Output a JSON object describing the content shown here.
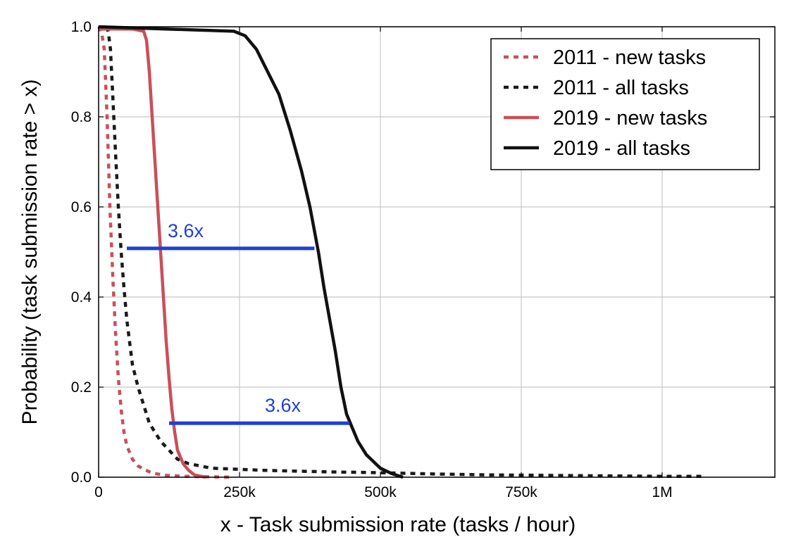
{
  "chart_data": {
    "type": "line",
    "title": "",
    "xlabel": "x - Task submission rate (tasks / hour)",
    "ylabel": "Probability (task submission rate > x)",
    "xlim": [
      0,
      1200000
    ],
    "ylim": [
      0,
      1.0
    ],
    "grid": true,
    "legend_position": "top-right",
    "x_ticks": [
      {
        "value": 0,
        "label": "0"
      },
      {
        "value": 250000,
        "label": "250k"
      },
      {
        "value": 500000,
        "label": "500k"
      },
      {
        "value": 750000,
        "label": "750k"
      },
      {
        "value": 1000000,
        "label": "1M"
      }
    ],
    "y_ticks": [
      {
        "value": 0.0,
        "label": "0.0"
      },
      {
        "value": 0.2,
        "label": "0.2"
      },
      {
        "value": 0.4,
        "label": "0.4"
      },
      {
        "value": 0.6,
        "label": "0.6"
      },
      {
        "value": 0.8,
        "label": "0.8"
      },
      {
        "value": 1.0,
        "label": "1.0"
      }
    ],
    "series": [
      {
        "name": "2011 - new tasks",
        "color": "#c8505a",
        "style": "dotted",
        "points": [
          [
            0,
            1.0
          ],
          [
            5000,
            0.99
          ],
          [
            10000,
            0.95
          ],
          [
            15000,
            0.8
          ],
          [
            20000,
            0.6
          ],
          [
            25000,
            0.45
          ],
          [
            30000,
            0.32
          ],
          [
            35000,
            0.22
          ],
          [
            40000,
            0.15
          ],
          [
            45000,
            0.1
          ],
          [
            50000,
            0.07
          ],
          [
            60000,
            0.04
          ],
          [
            70000,
            0.025
          ],
          [
            80000,
            0.018
          ],
          [
            90000,
            0.012
          ],
          [
            100000,
            0.008
          ],
          [
            120000,
            0.004
          ],
          [
            150000,
            0.002
          ],
          [
            200000,
            0.001
          ],
          [
            240000,
            0.0
          ]
        ]
      },
      {
        "name": "2011 - all tasks",
        "color": "#1a1a1a",
        "style": "dotted",
        "points": [
          [
            15000,
            1.0
          ],
          [
            18000,
            0.98
          ],
          [
            21000,
            0.95
          ],
          [
            25000,
            0.85
          ],
          [
            30000,
            0.72
          ],
          [
            35000,
            0.6
          ],
          [
            40000,
            0.5
          ],
          [
            45000,
            0.42
          ],
          [
            50000,
            0.35
          ],
          [
            55000,
            0.3
          ],
          [
            60000,
            0.25
          ],
          [
            70000,
            0.2
          ],
          [
            80000,
            0.16
          ],
          [
            90000,
            0.12
          ],
          [
            100000,
            0.1
          ],
          [
            110000,
            0.08
          ],
          [
            125000,
            0.06
          ],
          [
            140000,
            0.04
          ],
          [
            160000,
            0.03
          ],
          [
            200000,
            0.02
          ],
          [
            300000,
            0.015
          ],
          [
            400000,
            0.012
          ],
          [
            500000,
            0.01
          ],
          [
            600000,
            0.007
          ],
          [
            700000,
            0.005
          ],
          [
            800000,
            0.004
          ],
          [
            900000,
            0.003
          ],
          [
            1000000,
            0.002
          ],
          [
            1070000,
            0.002
          ]
        ]
      },
      {
        "name": "2019 - new tasks",
        "color": "#c8505a",
        "style": "solid",
        "points": [
          [
            0,
            0.995
          ],
          [
            60000,
            0.995
          ],
          [
            80000,
            0.99
          ],
          [
            85000,
            0.97
          ],
          [
            90000,
            0.9
          ],
          [
            95000,
            0.8
          ],
          [
            100000,
            0.7
          ],
          [
            105000,
            0.6
          ],
          [
            110000,
            0.5
          ],
          [
            115000,
            0.4
          ],
          [
            120000,
            0.3
          ],
          [
            125000,
            0.22
          ],
          [
            130000,
            0.15
          ],
          [
            135000,
            0.1
          ],
          [
            140000,
            0.06
          ],
          [
            150000,
            0.03
          ],
          [
            160000,
            0.015
          ],
          [
            170000,
            0.005
          ],
          [
            190000,
            0.0
          ]
        ]
      },
      {
        "name": "2019 - all tasks",
        "color": "#111111",
        "style": "solid",
        "points": [
          [
            0,
            1.0
          ],
          [
            240000,
            0.99
          ],
          [
            260000,
            0.98
          ],
          [
            280000,
            0.95
          ],
          [
            300000,
            0.9
          ],
          [
            320000,
            0.85
          ],
          [
            340000,
            0.77
          ],
          [
            360000,
            0.68
          ],
          [
            375000,
            0.6
          ],
          [
            390000,
            0.5
          ],
          [
            400000,
            0.42
          ],
          [
            410000,
            0.35
          ],
          [
            420000,
            0.28
          ],
          [
            430000,
            0.2
          ],
          [
            440000,
            0.14
          ],
          [
            450000,
            0.11
          ],
          [
            460000,
            0.08
          ],
          [
            475000,
            0.05
          ],
          [
            500000,
            0.02
          ],
          [
            520000,
            0.008
          ],
          [
            540000,
            0.0
          ]
        ]
      }
    ],
    "annotations": [
      {
        "label": "3.6x",
        "y": 0.508,
        "x_start": 50000,
        "x_end": 383000,
        "color": "#1f3fd6"
      },
      {
        "label": "3.6x",
        "y": 0.12,
        "x_start": 125000,
        "x_end": 445000,
        "color": "#1f3fd6"
      }
    ]
  }
}
